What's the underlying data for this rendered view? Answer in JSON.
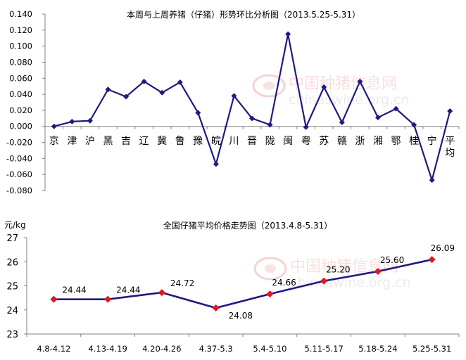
{
  "watermark": {
    "name_cn": "中国种猪信息网",
    "domain": "chinaswine.org.cn"
  },
  "chart_data": [
    {
      "type": "line",
      "title": "本周与上周养猪（仔猪）形势环比分析图（2013.5.25-5.31）",
      "xlabel": "",
      "ylabel": "",
      "ylim": [
        -0.08,
        0.14
      ],
      "yticks": [
        "0.140",
        "0.120",
        "0.100",
        "0.080",
        "0.060",
        "0.040",
        "0.020",
        "0.000",
        "-0.020",
        "-0.040",
        "-0.060",
        "-0.080"
      ],
      "grid": false,
      "legend": "none",
      "categories": [
        "京",
        "津",
        "沪",
        "黑",
        "吉",
        "辽",
        "冀",
        "鲁",
        "豫",
        "皖",
        "川",
        "晋",
        "陇",
        "闽",
        "粤",
        "苏",
        "赣",
        "浙",
        "湘",
        "鄂",
        "桂",
        "宁",
        "平均"
      ],
      "series": [
        {
          "values": [
            0.0,
            0.006,
            0.007,
            0.046,
            0.037,
            0.056,
            0.042,
            0.055,
            0.017,
            -0.047,
            0.038,
            0.01,
            0.002,
            0.115,
            -0.001,
            0.049,
            0.005,
            0.056,
            0.011,
            0.022,
            0.002,
            -0.067,
            0.019
          ],
          "color": "#1f1a80",
          "marker": "diamond"
        }
      ]
    },
    {
      "type": "line",
      "title": "全国仔猪平均价格走势图（2013.4.8-5.31）",
      "xlabel": "",
      "ylabel": "元/kg",
      "ylim": [
        23,
        27
      ],
      "yticks": [
        "27",
        "26",
        "25",
        "24",
        "23"
      ],
      "grid": false,
      "legend": "none",
      "categories": [
        "4.8-4.12",
        "4.13-4.19",
        "4.20-4.26",
        "4.37-5.3",
        "5.4-5.10",
        "5.11-5.17",
        "5.18-5.24",
        "5.25-5.31"
      ],
      "series": [
        {
          "values": [
            24.44,
            24.44,
            24.72,
            24.08,
            24.66,
            25.2,
            25.6,
            26.09
          ],
          "data_labels": [
            "24.44",
            "24.44",
            "24.72",
            "24.08",
            "24.66",
            "25.20",
            "25.60",
            "26.09"
          ],
          "color": "#1f1a80",
          "marker_color": "#e8141a",
          "marker": "diamond"
        }
      ]
    }
  ]
}
